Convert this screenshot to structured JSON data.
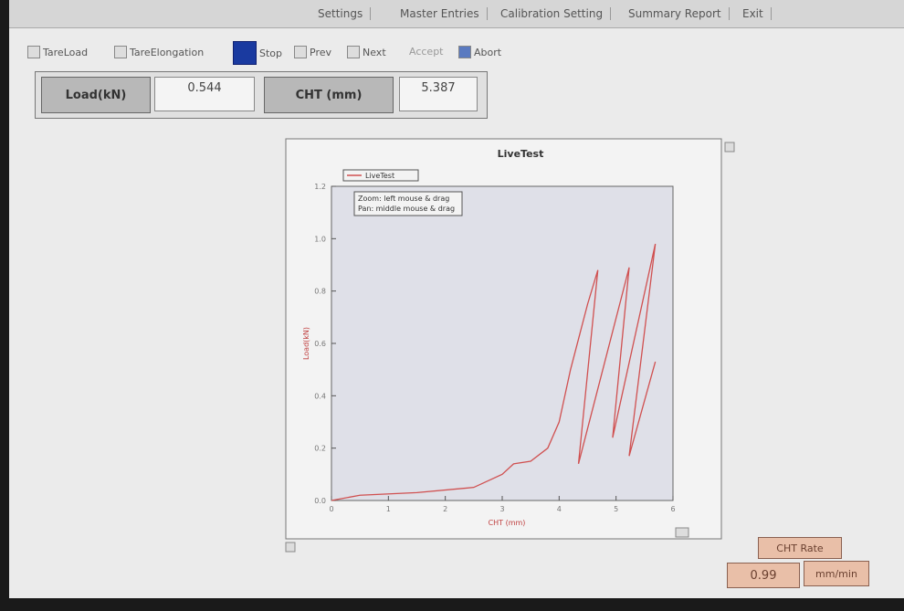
{
  "menu": [
    "Settings",
    "Master Entries",
    "Calibration Setting",
    "Summary Report",
    "Exit"
  ],
  "toolbar": [
    "TareLoad",
    "TareElongation",
    "Stop",
    "Prev",
    "Next",
    "Accept",
    "Abort"
  ],
  "readouts": [
    {
      "label": "Load(kN)",
      "value": 0.544
    },
    {
      "label": "CHT (mm)",
      "value": 5.387
    }
  ],
  "chart": {
    "type": "line",
    "title": "LiveTest",
    "xlabel": "CHT (mm)",
    "ylabel": "Load(kN)",
    "annotations": [
      "Zoom: left mouse & drag",
      "Pan: middle mouse & drag"
    ],
    "x": [
      0,
      0.5,
      1.5,
      2.5,
      3.0,
      3.2,
      3.5,
      3.8,
      4.0,
      4.2,
      4.5,
      4.68,
      4.34,
      5.23,
      4.94,
      5.69,
      5.23,
      5.69
    ],
    "series": [
      {
        "name": "LiveTest",
        "color": "#d05050",
        "values": [
          0,
          0.02,
          0.03,
          0.05,
          0.1,
          0.14,
          0.15,
          0.2,
          0.3,
          0.5,
          0.75,
          0.88,
          0.14,
          0.89,
          0.24,
          0.98,
          0.17,
          0.53
        ]
      }
    ],
    "xlim": [
      0,
      6
    ],
    "xticks": [
      0,
      1,
      2,
      3,
      4,
      5,
      6
    ],
    "ylim": [
      0,
      1.2
    ],
    "yticks": [
      {
        "value": 0,
        "label": "0.0"
      },
      0.2,
      0.4,
      0.6,
      0.8,
      {
        "value": 1,
        "label": "1.0"
      },
      1.2
    ]
  },
  "rate": {
    "label": "CHT Rate",
    "value": 0.99,
    "unit": "mm/min"
  }
}
